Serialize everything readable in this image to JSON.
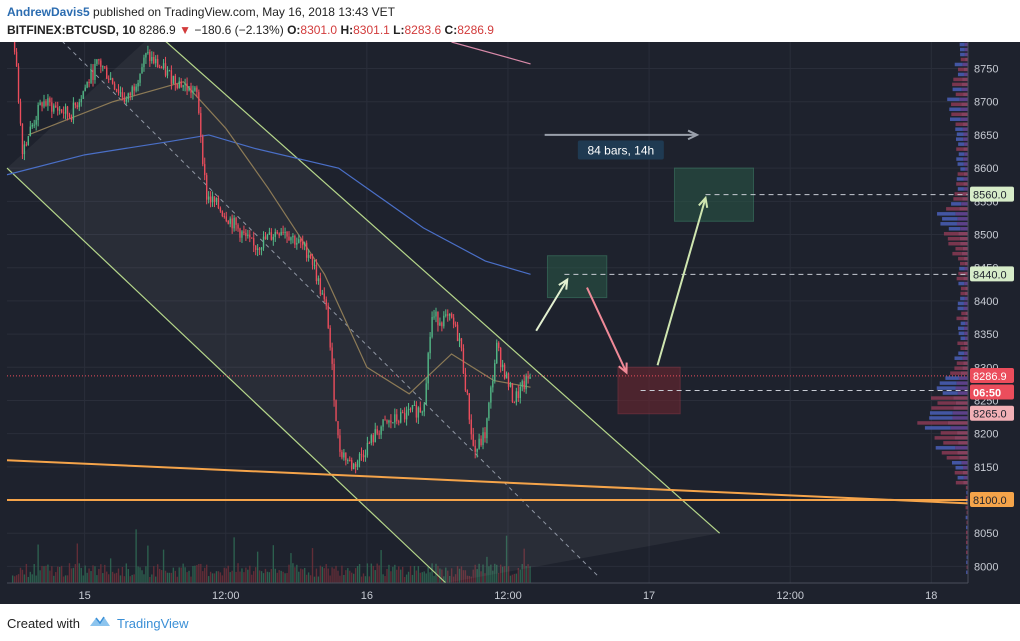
{
  "header": {
    "author": "AndrewDavis5",
    "published_text": "published on TradingView.com, May 16, 2018 13:43 VET",
    "symbol": "BITFINEX:BTCUSD, 10",
    "last": "8286.9",
    "change_arrow": "▼",
    "change": "−180.6 (−2.13%)",
    "o_label": "O:",
    "o_value": "8301.0",
    "h_label": "H:",
    "h_value": "8301.1",
    "l_label": "L:",
    "l_value": "8283.6",
    "c_label": "C:",
    "c_value": "8286.9"
  },
  "footer": {
    "created_with": "Created with",
    "brand": "TradingView"
  },
  "colors": {
    "background": "#1e222d",
    "up": "#53b987",
    "down": "#eb4d5c",
    "channel": "#b5d68a",
    "support": "#f5a44a",
    "ma_blue": "#4a6fc7",
    "ma_tan": "#8c7a56",
    "ma_pink": "#d98aa9"
  },
  "chart_data": {
    "type": "candlestick",
    "timeframe": "10",
    "ylim": [
      7975,
      8790
    ],
    "yticks": [
      8000,
      8050,
      8100,
      8150,
      8200,
      8250,
      8300,
      8350,
      8400,
      8450,
      8500,
      8550,
      8600,
      8650,
      8700,
      8750
    ],
    "x_tick_labels": [
      "15",
      "12:00",
      "16",
      "12:00",
      "17",
      "12:00",
      "18"
    ],
    "x_tick_positions": [
      0,
      0.5,
      1.0,
      1.5,
      2.0,
      2.5,
      3.0
    ],
    "xlim": [
      -0.275,
      3.13
    ],
    "last_bar_x": 1.58,
    "price_labels": [
      {
        "label": "8560.0",
        "value": 8560,
        "kind": "target"
      },
      {
        "label": "8440.0",
        "value": 8440,
        "kind": "target"
      },
      {
        "label": "8286.9",
        "value": 8286.9,
        "kind": "last"
      },
      {
        "label": "06:50",
        "value": 8262,
        "kind": "countdown"
      },
      {
        "label": "8265.0",
        "value": 8230,
        "kind": "entry"
      },
      {
        "label": "8100.0",
        "value": 8100,
        "kind": "support"
      }
    ],
    "annotation": "84 bars, 14h",
    "anchors": [
      {
        "x": -0.255,
        "y": 8820
      },
      {
        "x": -0.22,
        "y": 8630
      },
      {
        "x": -0.15,
        "y": 8700
      },
      {
        "x": -0.05,
        "y": 8680
      },
      {
        "x": 0.05,
        "y": 8760
      },
      {
        "x": 0.15,
        "y": 8700
      },
      {
        "x": 0.22,
        "y": 8770
      },
      {
        "x": 0.3,
        "y": 8740
      },
      {
        "x": 0.4,
        "y": 8710
      },
      {
        "x": 0.43,
        "y": 8560
      },
      {
        "x": 0.5,
        "y": 8530
      },
      {
        "x": 0.6,
        "y": 8480
      },
      {
        "x": 0.7,
        "y": 8510
      },
      {
        "x": 0.8,
        "y": 8470
      },
      {
        "x": 0.86,
        "y": 8380
      },
      {
        "x": 0.88,
        "y": 8280
      },
      {
        "x": 0.9,
        "y": 8180
      },
      {
        "x": 0.95,
        "y": 8150
      },
      {
        "x": 1.05,
        "y": 8210
      },
      {
        "x": 1.15,
        "y": 8230
      },
      {
        "x": 1.2,
        "y": 8240
      },
      {
        "x": 1.23,
        "y": 8375
      },
      {
        "x": 1.3,
        "y": 8370
      },
      {
        "x": 1.33,
        "y": 8340
      },
      {
        "x": 1.38,
        "y": 8170
      },
      {
        "x": 1.42,
        "y": 8200
      },
      {
        "x": 1.46,
        "y": 8330
      },
      {
        "x": 1.52,
        "y": 8250
      },
      {
        "x": 1.58,
        "y": 8287
      }
    ],
    "ma_blue": [
      {
        "x": -0.275,
        "y": 8590
      },
      {
        "x": 0.0,
        "y": 8620
      },
      {
        "x": 0.3,
        "y": 8640
      },
      {
        "x": 0.44,
        "y": 8650
      },
      {
        "x": 0.6,
        "y": 8630
      },
      {
        "x": 0.9,
        "y": 8600
      },
      {
        "x": 1.2,
        "y": 8510
      },
      {
        "x": 1.42,
        "y": 8460
      },
      {
        "x": 1.58,
        "y": 8440
      }
    ],
    "ma_tan": [
      {
        "x": -0.2,
        "y": 8650
      },
      {
        "x": 0.1,
        "y": 8700
      },
      {
        "x": 0.35,
        "y": 8730
      },
      {
        "x": 0.5,
        "y": 8660
      },
      {
        "x": 0.65,
        "y": 8570
      },
      {
        "x": 0.85,
        "y": 8440
      },
      {
        "x": 1.0,
        "y": 8300
      },
      {
        "x": 1.15,
        "y": 8260
      },
      {
        "x": 1.3,
        "y": 8320
      },
      {
        "x": 1.45,
        "y": 8280
      },
      {
        "x": 1.58,
        "y": 8270
      }
    ],
    "ma_pink": [
      {
        "x": 1.3,
        "y": 8790
      },
      {
        "x": 1.58,
        "y": 8757
      }
    ]
  }
}
